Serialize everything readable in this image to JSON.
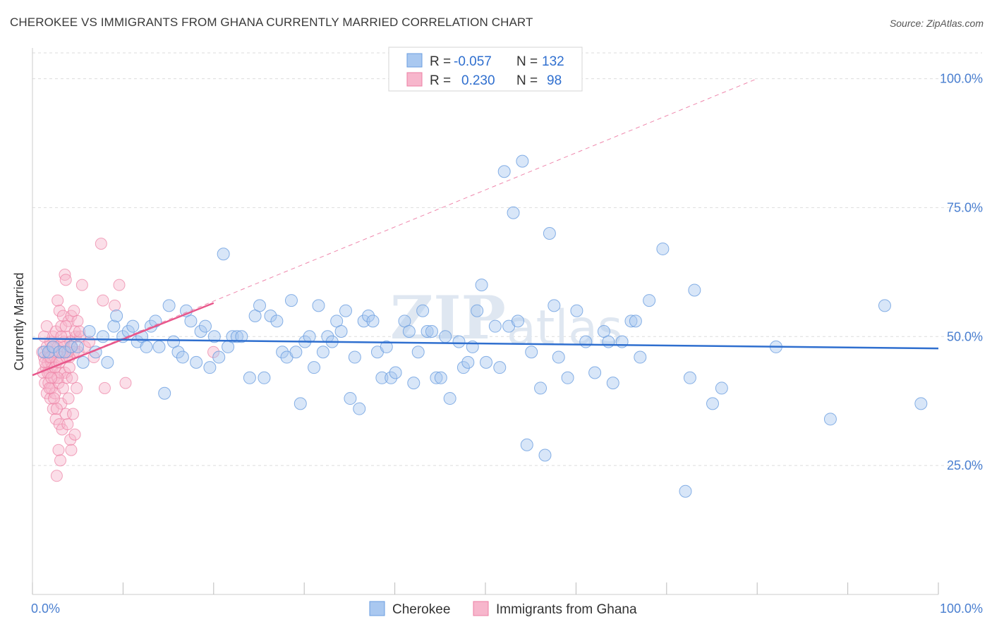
{
  "title": "CHEROKEE VS IMMIGRANTS FROM GHANA CURRENTLY MARRIED CORRELATION CHART",
  "source": "Source: ZipAtlas.com",
  "watermark": {
    "zip": "ZIP",
    "atlas": "atlas"
  },
  "legend": {
    "r_label": "R =",
    "n_label": "N =",
    "rows": [
      {
        "name": "Cherokee",
        "r": "-0.057",
        "n": "132",
        "color": "#a9c8f0",
        "stroke": "#6a9ee0"
      },
      {
        "name": "Immigrants from Ghana",
        "r": "0.230",
        "n": "98",
        "color": "#f7b6cc",
        "stroke": "#ec7fa3"
      }
    ]
  },
  "colors": {
    "blue_line": "#2f6fcf",
    "pink_line": "#e8568a",
    "tick_text": "#4a7fd0",
    "grid": "#dddddd"
  },
  "chart_data": {
    "type": "scatter",
    "title": "CHEROKEE VS IMMIGRANTS FROM GHANA CURRENTLY MARRIED CORRELATION CHART",
    "xlabel": "",
    "ylabel": "Currently Married",
    "xlim": [
      0,
      100
    ],
    "ylim": [
      0,
      105
    ],
    "x_tick_labels": [
      "0.0%",
      "100.0%"
    ],
    "y_ticks": [
      25,
      50,
      75,
      100
    ],
    "y_tick_labels": [
      "25.0%",
      "50.0%",
      "75.0%",
      "100.0%"
    ],
    "grid": "horizontal dashed",
    "legend_position": "top-center and bottom",
    "series": [
      {
        "name": "Cherokee",
        "color": "#6a9ee0",
        "trend": {
          "x": [
            0,
            100
          ],
          "y": [
            49.6,
            47.7
          ]
        },
        "points": [
          [
            0.5,
            47
          ],
          [
            1.0,
            47
          ],
          [
            1.5,
            48
          ],
          [
            2.2,
            47
          ],
          [
            2.8,
            47
          ],
          [
            3.5,
            48
          ],
          [
            4.2,
            48
          ],
          [
            4.8,
            45
          ],
          [
            5.5,
            51
          ],
          [
            6.2,
            47
          ],
          [
            7.0,
            50
          ],
          [
            7.5,
            45
          ],
          [
            8.2,
            52
          ],
          [
            8.5,
            54
          ],
          [
            9.2,
            50
          ],
          [
            9.8,
            51
          ],
          [
            10.3,
            52
          ],
          [
            10.8,
            49
          ],
          [
            11.3,
            50
          ],
          [
            11.8,
            48
          ],
          [
            12.3,
            52
          ],
          [
            12.8,
            53
          ],
          [
            13.2,
            48
          ],
          [
            13.8,
            39
          ],
          [
            14.3,
            56
          ],
          [
            14.8,
            49
          ],
          [
            15.3,
            47
          ],
          [
            15.8,
            46
          ],
          [
            16.2,
            55
          ],
          [
            16.7,
            53
          ],
          [
            17.3,
            45
          ],
          [
            17.8,
            51
          ],
          [
            18.3,
            52
          ],
          [
            18.8,
            44
          ],
          [
            19.3,
            50
          ],
          [
            19.8,
            46
          ],
          [
            20.3,
            66
          ],
          [
            20.8,
            48
          ],
          [
            21.3,
            50
          ],
          [
            21.8,
            50
          ],
          [
            22.3,
            50
          ],
          [
            23.2,
            42
          ],
          [
            23.8,
            54
          ],
          [
            24.3,
            56
          ],
          [
            24.8,
            42
          ],
          [
            25.5,
            54
          ],
          [
            26.2,
            53
          ],
          [
            26.8,
            47
          ],
          [
            27.3,
            46
          ],
          [
            27.8,
            57
          ],
          [
            28.3,
            47
          ],
          [
            28.8,
            37
          ],
          [
            29.3,
            49
          ],
          [
            29.8,
            50
          ],
          [
            30.3,
            44
          ],
          [
            30.8,
            56
          ],
          [
            31.3,
            47
          ],
          [
            31.8,
            50
          ],
          [
            32.3,
            49
          ],
          [
            32.8,
            53
          ],
          [
            33.3,
            51
          ],
          [
            33.8,
            55
          ],
          [
            34.3,
            38
          ],
          [
            34.8,
            46
          ],
          [
            35.3,
            36
          ],
          [
            35.8,
            53
          ],
          [
            36.3,
            54
          ],
          [
            36.8,
            53
          ],
          [
            37.3,
            47
          ],
          [
            37.8,
            42
          ],
          [
            38.3,
            48
          ],
          [
            38.8,
            42
          ],
          [
            39.3,
            43
          ],
          [
            40.3,
            53
          ],
          [
            40.8,
            51
          ],
          [
            41.3,
            41
          ],
          [
            41.8,
            47
          ],
          [
            42.3,
            55
          ],
          [
            42.8,
            51
          ],
          [
            43.3,
            51
          ],
          [
            43.8,
            42
          ],
          [
            44.3,
            42
          ],
          [
            44.8,
            50
          ],
          [
            45.3,
            38
          ],
          [
            46.3,
            49
          ],
          [
            46.8,
            44
          ],
          [
            47.3,
            45
          ],
          [
            47.8,
            48
          ],
          [
            48.3,
            55
          ],
          [
            48.8,
            60
          ],
          [
            49.3,
            45
          ],
          [
            50.3,
            52
          ],
          [
            50.8,
            44
          ],
          [
            51.3,
            82
          ],
          [
            51.8,
            52
          ],
          [
            52.3,
            74
          ],
          [
            52.8,
            53
          ],
          [
            53.3,
            84
          ],
          [
            53.8,
            29
          ],
          [
            54.3,
            47
          ],
          [
            55.3,
            40
          ],
          [
            55.8,
            27
          ],
          [
            56.3,
            70
          ],
          [
            56.8,
            56
          ],
          [
            57.3,
            46
          ],
          [
            58.3,
            42
          ],
          [
            59.3,
            55
          ],
          [
            60.3,
            49
          ],
          [
            61.3,
            43
          ],
          [
            62.3,
            51
          ],
          [
            62.8,
            49
          ],
          [
            63.3,
            41
          ],
          [
            64.3,
            49
          ],
          [
            65.3,
            53
          ],
          [
            65.8,
            53
          ],
          [
            66.3,
            46
          ],
          [
            67.3,
            57
          ],
          [
            68.8,
            67
          ],
          [
            71.3,
            20
          ],
          [
            71.8,
            42
          ],
          [
            72.3,
            59
          ],
          [
            74.3,
            37
          ],
          [
            75.3,
            40
          ],
          [
            81.3,
            48
          ],
          [
            87.3,
            34
          ],
          [
            93.3,
            56
          ],
          [
            97.3,
            37
          ]
        ]
      },
      {
        "name": "Immigrants from Ghana",
        "color": "#ec7fa3",
        "trend": {
          "x": [
            0,
            20
          ],
          "y": [
            42.5,
            56.5
          ]
        },
        "trend_extended": {
          "x": [
            0,
            80
          ],
          "y": [
            42.5,
            100
          ]
        },
        "points": [
          [
            0.3,
            47
          ],
          [
            0.4,
            43
          ],
          [
            0.5,
            46
          ],
          [
            0.6,
            41
          ],
          [
            0.7,
            44
          ],
          [
            0.8,
            39
          ],
          [
            0.8,
            48
          ],
          [
            0.9,
            45
          ],
          [
            1.0,
            41
          ],
          [
            1.0,
            46
          ],
          [
            1.1,
            43
          ],
          [
            1.1,
            47
          ],
          [
            1.2,
            38
          ],
          [
            1.2,
            49
          ],
          [
            1.3,
            45
          ],
          [
            1.3,
            40
          ],
          [
            1.4,
            44
          ],
          [
            1.5,
            36
          ],
          [
            1.5,
            50
          ],
          [
            1.6,
            47
          ],
          [
            1.6,
            42
          ],
          [
            1.7,
            39
          ],
          [
            1.8,
            51
          ],
          [
            1.8,
            34
          ],
          [
            1.9,
            45
          ],
          [
            1.9,
            23
          ],
          [
            2.0,
            57
          ],
          [
            2.0,
            48
          ],
          [
            2.1,
            41
          ],
          [
            2.1,
            28
          ],
          [
            2.2,
            55
          ],
          [
            2.2,
            33
          ],
          [
            2.3,
            43
          ],
          [
            2.3,
            26
          ],
          [
            2.4,
            52
          ],
          [
            2.4,
            37
          ],
          [
            2.5,
            46
          ],
          [
            2.5,
            32
          ],
          [
            2.6,
            54
          ],
          [
            2.6,
            40
          ],
          [
            2.7,
            48
          ],
          [
            2.8,
            62
          ],
          [
            2.8,
            43
          ],
          [
            2.9,
            61
          ],
          [
            2.9,
            35
          ],
          [
            3.0,
            50
          ],
          [
            3.0,
            42
          ],
          [
            3.1,
            33
          ],
          [
            3.2,
            53
          ],
          [
            3.2,
            38
          ],
          [
            3.3,
            46
          ],
          [
            3.4,
            30
          ],
          [
            3.4,
            49
          ],
          [
            3.5,
            54
          ],
          [
            3.5,
            28
          ],
          [
            3.6,
            42
          ],
          [
            3.7,
            35
          ],
          [
            3.8,
            55
          ],
          [
            3.8,
            47
          ],
          [
            3.9,
            31
          ],
          [
            4.0,
            50
          ],
          [
            4.1,
            40
          ],
          [
            4.2,
            53
          ],
          [
            4.3,
            47
          ],
          [
            4.5,
            50
          ],
          [
            4.7,
            60
          ],
          [
            5.0,
            48
          ],
          [
            5.5,
            49
          ],
          [
            6.0,
            46
          ],
          [
            6.8,
            68
          ],
          [
            7.0,
            57
          ],
          [
            7.2,
            40
          ],
          [
            8.3,
            56
          ],
          [
            8.8,
            60
          ],
          [
            9.5,
            41
          ],
          [
            19.2,
            47
          ],
          [
            0.6,
            45
          ],
          [
            0.9,
            43
          ],
          [
            1.2,
            46
          ],
          [
            1.4,
            48
          ],
          [
            1.7,
            44
          ],
          [
            2.0,
            42
          ],
          [
            2.2,
            45
          ],
          [
            2.5,
            47
          ],
          [
            2.7,
            49
          ],
          [
            3.0,
            46
          ],
          [
            3.3,
            44
          ],
          [
            3.6,
            48
          ],
          [
            1.1,
            40
          ],
          [
            1.3,
            42
          ],
          [
            1.6,
            38
          ],
          [
            1.9,
            36
          ],
          [
            2.4,
            50
          ],
          [
            2.9,
            52
          ],
          [
            3.1,
            47
          ],
          [
            3.9,
            51
          ],
          [
            4.4,
            51
          ],
          [
            0.5,
            50
          ],
          [
            0.8,
            52
          ]
        ]
      }
    ]
  }
}
